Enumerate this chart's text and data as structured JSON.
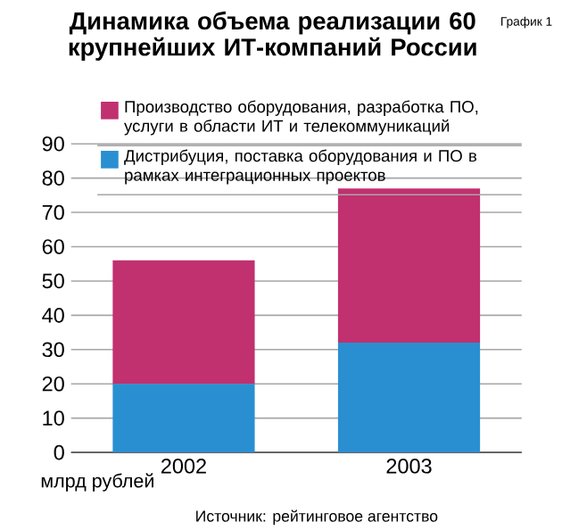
{
  "chart_data": {
    "type": "bar",
    "stacked": true,
    "title": "Динамика объема реализации 60 крупнейших ИТ-компаний России",
    "ylabel": "млрд рублей",
    "annotations": [
      "График 1",
      "Источник: рейтинговое агентство"
    ],
    "categories": [
      "2002",
      "2003"
    ],
    "series": [
      {
        "name": "Дистрибуция, поставка оборудования и ПО в рамках интеграционных проектов",
        "color": "#2a8fd0",
        "values": [
          20,
          32
        ]
      },
      {
        "name": "Производство оборудования, разработка ПО, услуги в области ИТ и телекоммуникаций",
        "color": "#c1306f",
        "values": [
          36,
          45
        ]
      }
    ],
    "ylim": [
      0,
      90
    ],
    "yticks": [
      0,
      10,
      20,
      30,
      40,
      50,
      60,
      70,
      80,
      90
    ],
    "grid": "y",
    "legend": "top"
  }
}
